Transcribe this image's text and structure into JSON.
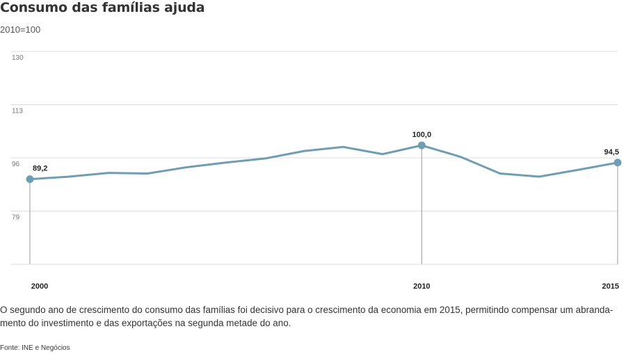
{
  "chart_data": {
    "type": "line",
    "title": "Consumo das famílias ajuda",
    "subtitle": "2010=100",
    "ylim": [
      62,
      130
    ],
    "yticks": [
      "130",
      "113",
      "96",
      "79"
    ],
    "ytick_values": [
      130,
      113,
      96,
      79
    ],
    "x": [
      2000,
      2001,
      2002,
      2003,
      2004,
      2005,
      2006,
      2007,
      2008,
      2009,
      2010,
      2011,
      2012,
      2013,
      2014,
      2015
    ],
    "xtick_labels": [
      {
        "year": 2000,
        "label": "2000"
      },
      {
        "year": 2010,
        "label": "2010"
      },
      {
        "year": 2015,
        "label": "2015"
      }
    ],
    "series": [
      {
        "name": "Consumo das famílias",
        "color": "#6f9db3",
        "values": [
          89.2,
          90.0,
          91.2,
          91.0,
          93.0,
          94.5,
          95.8,
          98.2,
          99.5,
          97.2,
          100.0,
          96.3,
          91.0,
          90.0,
          92.2,
          94.5
        ]
      }
    ],
    "labeled_points": [
      {
        "year": 2000,
        "label": "89,2"
      },
      {
        "year": 2010,
        "label": "100,0"
      },
      {
        "year": 2015,
        "label": "94,5"
      }
    ],
    "gridline_color": "#dcdcdc"
  },
  "caption": {
    "line1": "O segundo ano de crescimento do consumo das famílias foi decisivo para o crescimento da economia em 2015, permitindo compensar um abranda-",
    "line2": "mento  do investimento e das exportações na segunda metade do ano."
  },
  "source": "Fonte: INE e Negócios"
}
